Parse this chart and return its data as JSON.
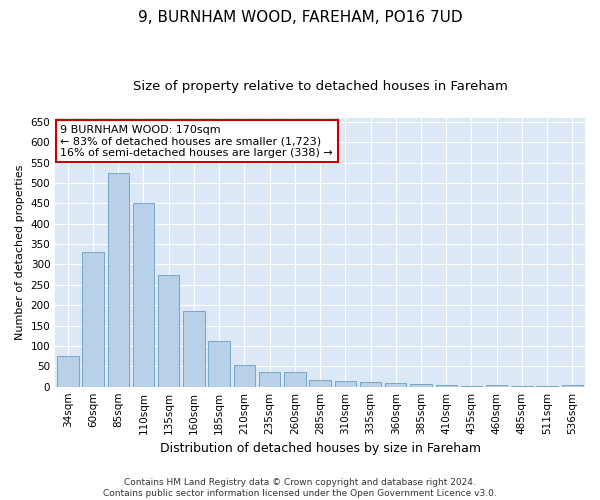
{
  "title": "9, BURNHAM WOOD, FAREHAM, PO16 7UD",
  "subtitle": "Size of property relative to detached houses in Fareham",
  "xlabel": "Distribution of detached houses by size in Fareham",
  "ylabel": "Number of detached properties",
  "categories": [
    "34sqm",
    "60sqm",
    "85sqm",
    "110sqm",
    "135sqm",
    "160sqm",
    "185sqm",
    "210sqm",
    "235sqm",
    "260sqm",
    "285sqm",
    "310sqm",
    "335sqm",
    "360sqm",
    "385sqm",
    "410sqm",
    "435sqm",
    "460sqm",
    "485sqm",
    "511sqm",
    "536sqm"
  ],
  "values": [
    75,
    330,
    525,
    450,
    275,
    185,
    113,
    52,
    35,
    37,
    17,
    15,
    12,
    9,
    7,
    5,
    1,
    5,
    1,
    1,
    5
  ],
  "bar_color": "#b8d0e8",
  "bar_edge_color": "#6a9fc0",
  "annotation_box_text": "9 BURNHAM WOOD: 170sqm\n← 83% of detached houses are smaller (1,723)\n16% of semi-detached houses are larger (338) →",
  "annotation_box_color": "#ffffff",
  "annotation_box_edge_color": "#cc0000",
  "fig_background_color": "#ffffff",
  "plot_background_color": "#dce8f5",
  "grid_color": "#ffffff",
  "ylim": [
    0,
    660
  ],
  "yticks": [
    0,
    50,
    100,
    150,
    200,
    250,
    300,
    350,
    400,
    450,
    500,
    550,
    600,
    650
  ],
  "footnote": "Contains HM Land Registry data © Crown copyright and database right 2024.\nContains public sector information licensed under the Open Government Licence v3.0.",
  "title_fontsize": 11,
  "subtitle_fontsize": 9.5,
  "xlabel_fontsize": 9,
  "ylabel_fontsize": 8,
  "tick_fontsize": 7.5,
  "annotation_fontsize": 8,
  "footnote_fontsize": 6.5
}
